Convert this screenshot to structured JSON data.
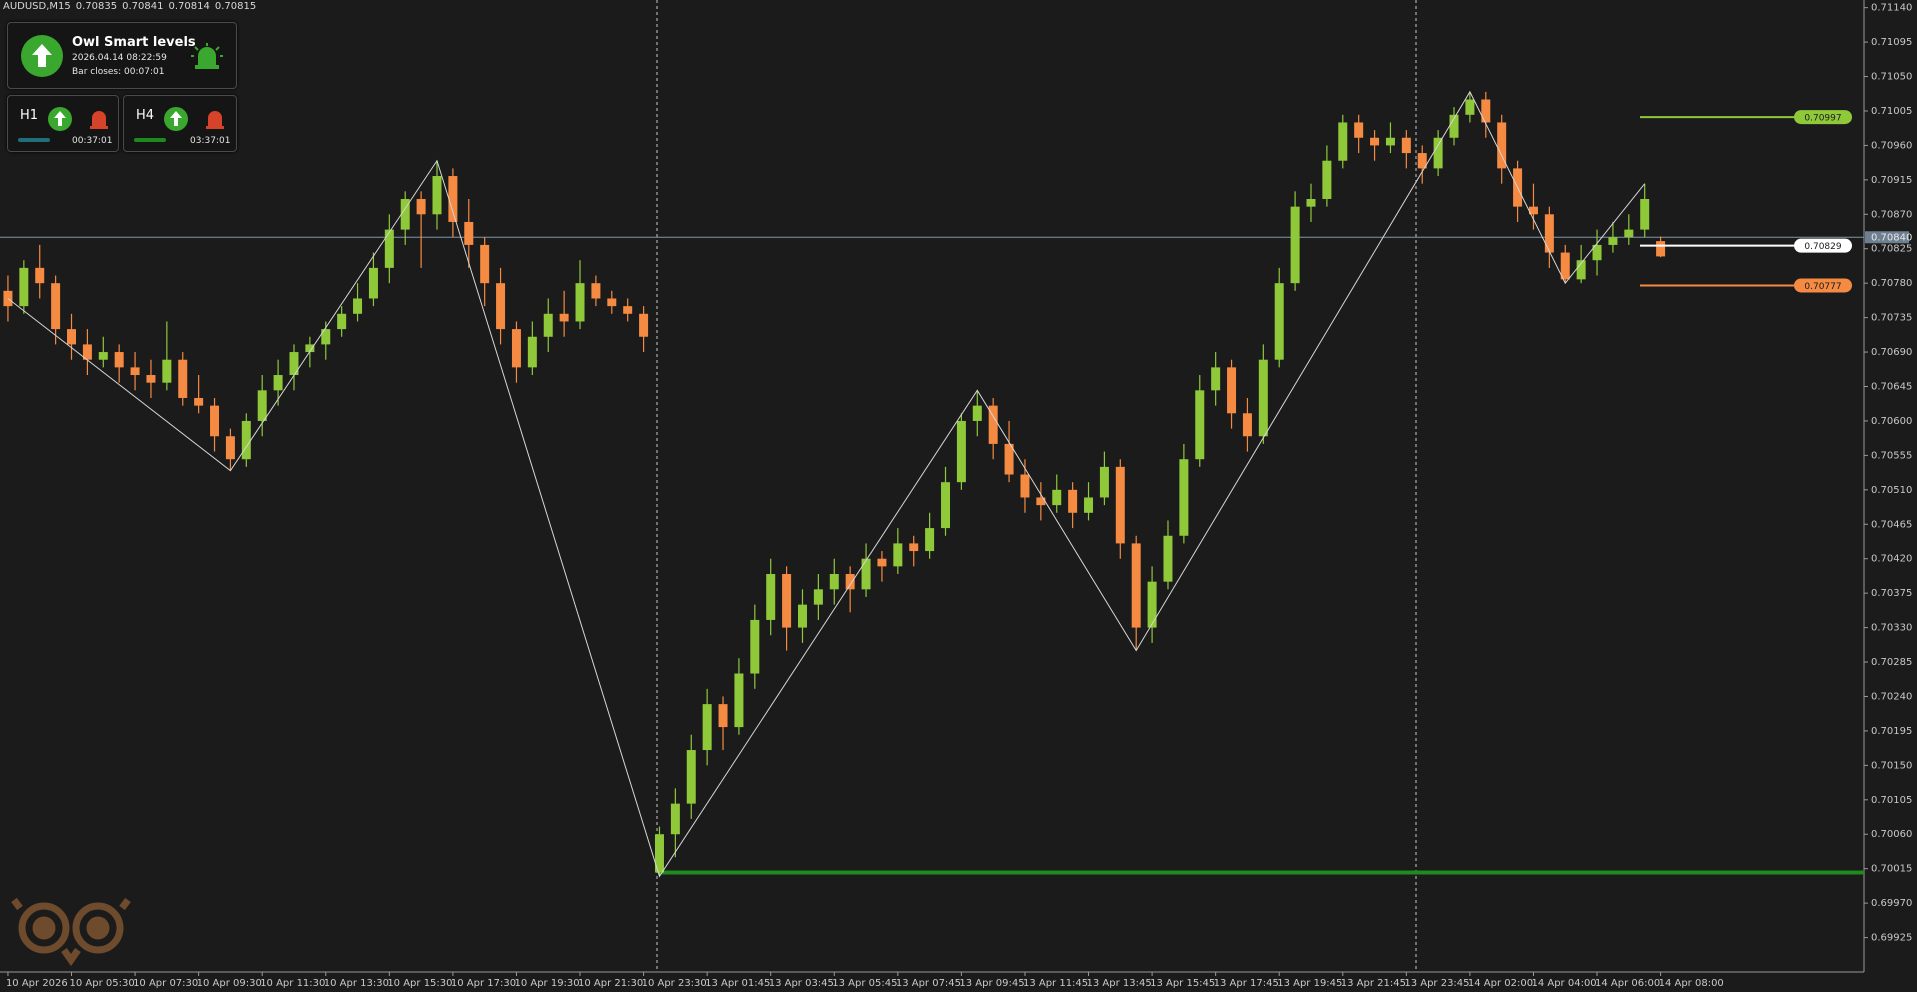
{
  "header": {
    "symbol": "AUDUSD,M15",
    "quote": [
      0.70835,
      0.70841,
      0.70814,
      0.70815
    ]
  },
  "panel": {
    "title": "Owl Smart levels",
    "time": "2026.04.14 08:22:59",
    "bar_closes": "Bar closes: 00:07:01",
    "frames": [
      {
        "name": "H1",
        "timer": "00:37:01"
      },
      {
        "name": "H4",
        "timer": "03:37:01"
      }
    ]
  },
  "chart_data": {
    "type": "candlestick",
    "up_color": "#8fc93a",
    "down_color": "#f58a42",
    "xlim": [
      -0.5,
      116.8
    ],
    "ylim": [
      0.6988,
      0.7115
    ],
    "yticks": [
      {
        "value": 0.7114,
        "label": "0.71140"
      },
      0.71095,
      {
        "value": 0.7105,
        "label": "0.71050"
      },
      0.71005,
      {
        "value": 0.7096,
        "label": "0.70960"
      },
      0.70915,
      {
        "value": 0.7087,
        "label": "0.70870"
      },
      0.70825,
      {
        "value": 0.7078,
        "label": "0.70780"
      },
      0.70735,
      {
        "value": 0.7069,
        "label": "0.70690"
      },
      0.70645,
      {
        "value": 0.706,
        "label": "0.70600"
      },
      0.70555,
      {
        "value": 0.7051,
        "label": "0.70510"
      },
      0.70465,
      {
        "value": 0.7042,
        "label": "0.70420"
      },
      0.70375,
      {
        "value": 0.7033,
        "label": "0.70330"
      },
      0.70285,
      {
        "value": 0.7024,
        "label": "0.70240"
      },
      0.70195,
      {
        "value": 0.7015,
        "label": "0.70150"
      },
      0.70105,
      {
        "value": 0.7006,
        "label": "0.70060"
      },
      0.70015,
      {
        "value": 0.6997,
        "label": "0.69970"
      },
      0.69925
    ],
    "xticks": [
      {
        "value": 0,
        "label": "10 Apr 2026"
      },
      {
        "value": 4,
        "label": "10 Apr 05:30"
      },
      {
        "value": 8,
        "label": "10 Apr 07:30"
      },
      {
        "value": 12,
        "label": "10 Apr 09:30"
      },
      {
        "value": 16,
        "label": "10 Apr 11:30"
      },
      {
        "value": 20,
        "label": "10 Apr 13:30"
      },
      {
        "value": 24,
        "label": "10 Apr 15:30"
      },
      {
        "value": 28,
        "label": "10 Apr 17:30"
      },
      {
        "value": 32,
        "label": "10 Apr 19:30"
      },
      {
        "value": 36,
        "label": "10 Apr 21:30"
      },
      {
        "value": 40,
        "label": "10 Apr 23:30"
      },
      {
        "value": 44,
        "label": "13 Apr 01:45"
      },
      {
        "value": 48,
        "label": "13 Apr 03:45"
      },
      {
        "value": 52,
        "label": "13 Apr 05:45"
      },
      {
        "value": 56,
        "label": "13 Apr 07:45"
      },
      {
        "value": 60,
        "label": "13 Apr 09:45"
      },
      {
        "value": 64,
        "label": "13 Apr 11:45"
      },
      {
        "value": 68,
        "label": "13 Apr 13:45"
      },
      {
        "value": 72,
        "label": "13 Apr 15:45"
      },
      {
        "value": 76,
        "label": "13 Apr 17:45"
      },
      {
        "value": 80,
        "label": "13 Apr 19:45"
      },
      {
        "value": 84,
        "label": "13 Apr 21:45"
      },
      {
        "value": 88,
        "label": "13 Apr 23:45"
      },
      {
        "value": 92,
        "label": "14 Apr 02:00"
      },
      {
        "value": 96,
        "label": "14 Apr 04:00"
      },
      {
        "value": 100,
        "label": "14 Apr 06:00"
      },
      {
        "value": 104,
        "label": "14 Apr 08:00"
      }
    ],
    "ohlc": [
      [
        0.7077,
        0.7079,
        0.7073,
        0.7075
      ],
      [
        0.7075,
        0.7081,
        0.7074,
        0.708
      ],
      [
        0.708,
        0.7083,
        0.7076,
        0.7078
      ],
      [
        0.7078,
        0.7079,
        0.707,
        0.7072
      ],
      [
        0.7072,
        0.7074,
        0.7068,
        0.707
      ],
      [
        0.707,
        0.7072,
        0.7066,
        0.7068
      ],
      [
        0.7068,
        0.7071,
        0.7067,
        0.7069
      ],
      [
        0.7069,
        0.707,
        0.7065,
        0.7067
      ],
      [
        0.7067,
        0.7069,
        0.7064,
        0.7066
      ],
      [
        0.7066,
        0.7068,
        0.7063,
        0.7065
      ],
      [
        0.7065,
        0.7073,
        0.7064,
        0.7068
      ],
      [
        0.7068,
        0.7069,
        0.7062,
        0.7063
      ],
      [
        0.7063,
        0.7066,
        0.7061,
        0.7062
      ],
      [
        0.7062,
        0.7063,
        0.7056,
        0.7058
      ],
      [
        0.7058,
        0.7059,
        0.70535,
        0.7055
      ],
      [
        0.7055,
        0.7061,
        0.7054,
        0.706
      ],
      [
        0.706,
        0.7066,
        0.7058,
        0.7064
      ],
      [
        0.7064,
        0.7068,
        0.7062,
        0.7066
      ],
      [
        0.7066,
        0.707,
        0.7064,
        0.7069
      ],
      [
        0.7069,
        0.7071,
        0.7067,
        0.707
      ],
      [
        0.707,
        0.7073,
        0.7068,
        0.7072
      ],
      [
        0.7072,
        0.7075,
        0.7071,
        0.7074
      ],
      [
        0.7074,
        0.7078,
        0.7073,
        0.7076
      ],
      [
        0.7076,
        0.7082,
        0.7075,
        0.708
      ],
      [
        0.708,
        0.7087,
        0.7078,
        0.7085
      ],
      [
        0.7085,
        0.709,
        0.7083,
        0.7089
      ],
      [
        0.7089,
        0.709,
        0.708,
        0.7087
      ],
      [
        0.7087,
        0.7094,
        0.7085,
        0.7092
      ],
      [
        0.7092,
        0.7093,
        0.7084,
        0.7086
      ],
      [
        0.7086,
        0.7089,
        0.708,
        0.7083
      ],
      [
        0.7083,
        0.7084,
        0.7075,
        0.7078
      ],
      [
        0.7078,
        0.708,
        0.707,
        0.7072
      ],
      [
        0.7072,
        0.7073,
        0.7065,
        0.7067
      ],
      [
        0.7067,
        0.7073,
        0.7066,
        0.7071
      ],
      [
        0.7071,
        0.7076,
        0.7069,
        0.7074
      ],
      [
        0.7074,
        0.7077,
        0.7071,
        0.7073
      ],
      [
        0.7073,
        0.7081,
        0.7072,
        0.7078
      ],
      [
        0.7078,
        0.7079,
        0.7075,
        0.7076
      ],
      [
        0.7076,
        0.7077,
        0.7074,
        0.7075
      ],
      [
        0.7075,
        0.7076,
        0.7073,
        0.7074
      ],
      [
        0.7074,
        0.7075,
        0.7069,
        0.7071
      ],
      [
        0.7001,
        0.7007,
        0.70005,
        0.7006
      ],
      [
        0.7006,
        0.7012,
        0.7003,
        0.701
      ],
      [
        0.701,
        0.7019,
        0.7008,
        0.7017
      ],
      [
        0.7017,
        0.7025,
        0.7015,
        0.7023
      ],
      [
        0.7023,
        0.7024,
        0.7017,
        0.702
      ],
      [
        0.702,
        0.7029,
        0.7019,
        0.7027
      ],
      [
        0.7027,
        0.7036,
        0.7025,
        0.7034
      ],
      [
        0.7034,
        0.7042,
        0.7032,
        0.704
      ],
      [
        0.704,
        0.7041,
        0.703,
        0.7033
      ],
      [
        0.7033,
        0.7038,
        0.7031,
        0.7036
      ],
      [
        0.7036,
        0.704,
        0.7034,
        0.7038
      ],
      [
        0.7038,
        0.7042,
        0.7036,
        0.704
      ],
      [
        0.704,
        0.7041,
        0.7035,
        0.7038
      ],
      [
        0.7038,
        0.7044,
        0.7037,
        0.7042
      ],
      [
        0.7042,
        0.7043,
        0.7039,
        0.7041
      ],
      [
        0.7041,
        0.7046,
        0.704,
        0.7044
      ],
      [
        0.7044,
        0.7045,
        0.7041,
        0.7043
      ],
      [
        0.7043,
        0.7048,
        0.7042,
        0.7046
      ],
      [
        0.7046,
        0.7054,
        0.7045,
        0.7052
      ],
      [
        0.7052,
        0.7061,
        0.7051,
        0.706
      ],
      [
        0.706,
        0.7064,
        0.7058,
        0.7062
      ],
      [
        0.7062,
        0.7063,
        0.7055,
        0.7057
      ],
      [
        0.7057,
        0.706,
        0.7052,
        0.7053
      ],
      [
        0.7053,
        0.7055,
        0.7048,
        0.705
      ],
      [
        0.705,
        0.7052,
        0.7047,
        0.7049
      ],
      [
        0.7049,
        0.7053,
        0.7048,
        0.7051
      ],
      [
        0.7051,
        0.7052,
        0.7046,
        0.7048
      ],
      [
        0.7048,
        0.7052,
        0.7047,
        0.705
      ],
      [
        0.705,
        0.7056,
        0.7049,
        0.7054
      ],
      [
        0.7054,
        0.7055,
        0.7042,
        0.7044
      ],
      [
        0.7044,
        0.7045,
        0.703,
        0.7033
      ],
      [
        0.7033,
        0.7041,
        0.7031,
        0.7039
      ],
      [
        0.7039,
        0.7047,
        0.7038,
        0.7045
      ],
      [
        0.7045,
        0.7057,
        0.7044,
        0.7055
      ],
      [
        0.7055,
        0.7066,
        0.7054,
        0.7064
      ],
      [
        0.7064,
        0.7069,
        0.7062,
        0.7067
      ],
      [
        0.7067,
        0.7068,
        0.7059,
        0.7061
      ],
      [
        0.7061,
        0.7063,
        0.7056,
        0.7058
      ],
      [
        0.7058,
        0.707,
        0.7057,
        0.7068
      ],
      [
        0.7068,
        0.708,
        0.7067,
        0.7078
      ],
      [
        0.7078,
        0.709,
        0.7077,
        0.7088
      ],
      [
        0.7088,
        0.7091,
        0.7086,
        0.7089
      ],
      [
        0.7089,
        0.7096,
        0.7088,
        0.7094
      ],
      [
        0.7094,
        0.71,
        0.7093,
        0.7099
      ],
      [
        0.7099,
        0.71,
        0.7095,
        0.7097
      ],
      [
        0.7097,
        0.7098,
        0.7094,
        0.7096
      ],
      [
        0.7096,
        0.7099,
        0.7095,
        0.7097
      ],
      [
        0.7097,
        0.7098,
        0.7093,
        0.7095
      ],
      [
        0.7095,
        0.7096,
        0.7091,
        0.7093
      ],
      [
        0.7093,
        0.7098,
        0.7092,
        0.7097
      ],
      [
        0.7097,
        0.7101,
        0.7096,
        0.71
      ],
      [
        0.71,
        0.7103,
        0.7099,
        0.7102
      ],
      [
        0.7102,
        0.7103,
        0.7097,
        0.7099
      ],
      [
        0.7099,
        0.71,
        0.7091,
        0.7093
      ],
      [
        0.7093,
        0.7094,
        0.7086,
        0.7088
      ],
      [
        0.7088,
        0.7091,
        0.7085,
        0.7087
      ],
      [
        0.7087,
        0.7088,
        0.708,
        0.7082
      ],
      [
        0.7082,
        0.7083,
        0.7078,
        0.70785
      ],
      [
        0.70785,
        0.7083,
        0.7078,
        0.7081
      ],
      [
        0.7081,
        0.7085,
        0.7079,
        0.7083
      ],
      [
        0.7083,
        0.7086,
        0.7082,
        0.7084
      ],
      [
        0.7084,
        0.7087,
        0.7083,
        0.7085
      ],
      [
        0.7085,
        0.7091,
        0.7084,
        0.7089
      ],
      [
        0.70835,
        0.70841,
        0.70814,
        0.70815
      ]
    ],
    "zigzag": {
      "color": "#d6d6d6",
      "points": [
        [
          0,
          0.7076
        ],
        [
          14,
          0.70535
        ],
        [
          27,
          0.7094
        ],
        [
          41,
          0.70005
        ],
        [
          61,
          0.7064
        ],
        [
          71,
          0.703
        ],
        [
          92,
          0.7103
        ],
        [
          98,
          0.7078
        ],
        [
          103,
          0.7091
        ]
      ]
    },
    "price_line": {
      "value": 0.7084,
      "label": "0.70840",
      "color": "#7d98ad"
    },
    "support": {
      "value": 0.7001,
      "color": "#1f8a1f"
    },
    "levels": [
      {
        "value": 0.70997,
        "color": "#8fc93a"
      },
      {
        "value": 0.70829,
        "color": "#ffffff"
      },
      {
        "value": 0.70777,
        "color": "#f58a42"
      }
    ]
  }
}
